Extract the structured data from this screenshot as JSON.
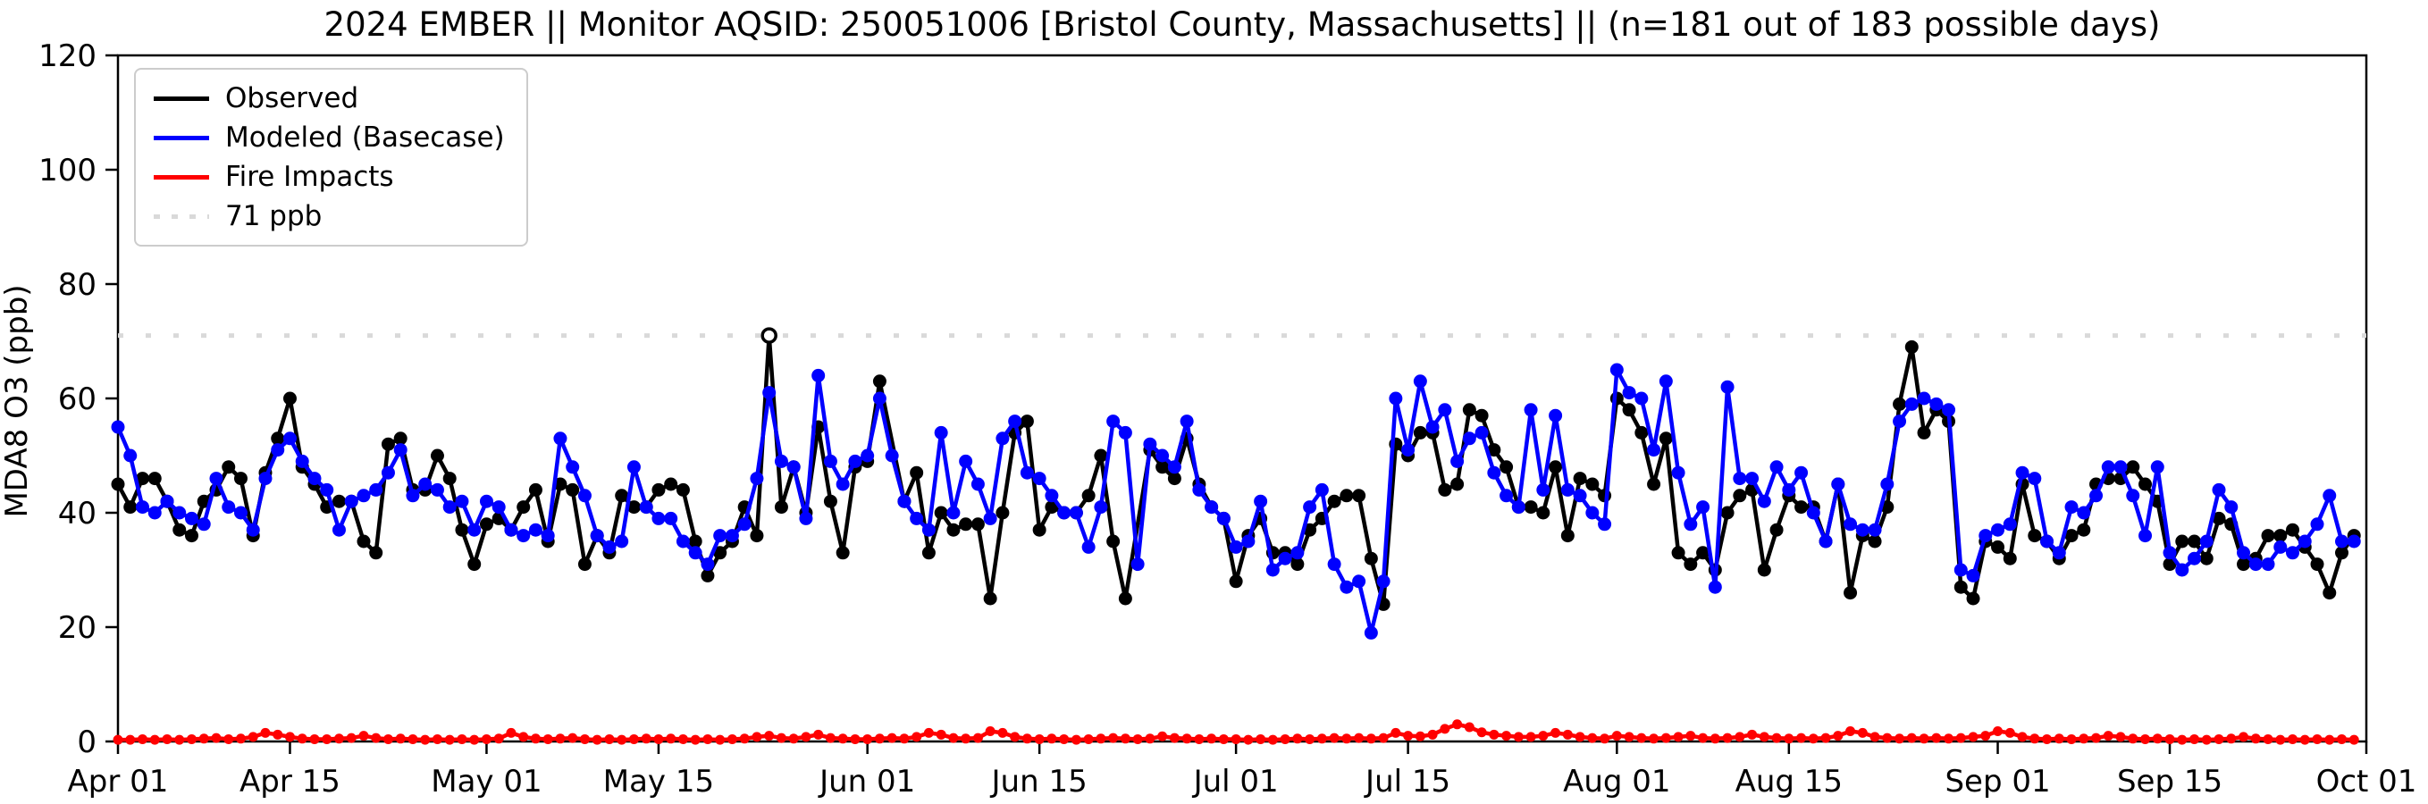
{
  "chart_data": {
    "type": "line",
    "title": "2024 EMBER || Monitor AQSID: 250051006 [Bristol County, Massachusetts] || (n=181 out of 183 possible days)",
    "ylabel": "MDA8 O3 (ppb)",
    "ylim": [
      0,
      120
    ],
    "yticks": [
      0,
      20,
      40,
      60,
      80,
      100,
      120
    ],
    "x_total_days": 183,
    "xticks": [
      {
        "day": 0,
        "label": "Apr 01"
      },
      {
        "day": 14,
        "label": "Apr 15"
      },
      {
        "day": 30,
        "label": "May 01"
      },
      {
        "day": 44,
        "label": "May 15"
      },
      {
        "day": 61,
        "label": "Jun 01"
      },
      {
        "day": 75,
        "label": "Jun 15"
      },
      {
        "day": 91,
        "label": "Jul 01"
      },
      {
        "day": 105,
        "label": "Jul 15"
      },
      {
        "day": 122,
        "label": "Aug 01"
      },
      {
        "day": 136,
        "label": "Aug 15"
      },
      {
        "day": 153,
        "label": "Sep 01"
      },
      {
        "day": 167,
        "label": "Sep 15"
      },
      {
        "day": 183,
        "label": "Oct 01"
      }
    ],
    "threshold": {
      "value": 71,
      "label": "71 ppb",
      "color": "#d9d9d9"
    },
    "background_color": "#ffffff",
    "legend_items": [
      {
        "label": "Observed",
        "color": "#000000",
        "style": "solid"
      },
      {
        "label": "Modeled (Basecase)",
        "color": "#0000ff",
        "style": "solid"
      },
      {
        "label": "Fire Impacts",
        "color": "#ff0000",
        "style": "solid"
      },
      {
        "label": "71 ppb",
        "color": "#d9d9d9",
        "style": "dotted"
      }
    ],
    "series": [
      {
        "name": "Observed",
        "color": "#000000",
        "marker": "circle",
        "hollow_marker_day": 53,
        "values": [
          45,
          41,
          46,
          46,
          42,
          37,
          36,
          42,
          44,
          48,
          46,
          36,
          47,
          53,
          60,
          48,
          45,
          41,
          42,
          42,
          35,
          33,
          52,
          53,
          44,
          44,
          50,
          46,
          37,
          31,
          38,
          39,
          37,
          41,
          44,
          35,
          45,
          44,
          31,
          36,
          33,
          43,
          41,
          41,
          44,
          45,
          44,
          35,
          29,
          33,
          35,
          41,
          36,
          71,
          41,
          48,
          40,
          55,
          42,
          33,
          48,
          49,
          63,
          null,
          42,
          47,
          33,
          40,
          37,
          38,
          38,
          25,
          40,
          54,
          56,
          37,
          41,
          40,
          40,
          43,
          50,
          35,
          25,
          null,
          51,
          48,
          46,
          53,
          45,
          41,
          39,
          28,
          36,
          39,
          33,
          33,
          31,
          37,
          39,
          42,
          43,
          43,
          32,
          24,
          52,
          50,
          54,
          54,
          44,
          45,
          58,
          57,
          51,
          48,
          41,
          41,
          40,
          48,
          36,
          46,
          45,
          43,
          60,
          58,
          54,
          45,
          53,
          33,
          31,
          33,
          30,
          40,
          43,
          44,
          30,
          37,
          43,
          41,
          41,
          35,
          45,
          26,
          36,
          35,
          41,
          59,
          69,
          54,
          58,
          56,
          27,
          25,
          35,
          34,
          32,
          45,
          36,
          35,
          32,
          36,
          37,
          45,
          46,
          46,
          48,
          45,
          42,
          31,
          35,
          35,
          32,
          39,
          38,
          31,
          32,
          36,
          36,
          37,
          34,
          31,
          26,
          33,
          36
        ]
      },
      {
        "name": "Modeled (Basecase)",
        "color": "#0000ff",
        "marker": "circle",
        "values": [
          55,
          50,
          41,
          40,
          42,
          40,
          39,
          38,
          46,
          41,
          40,
          37,
          46,
          51,
          53,
          49,
          46,
          44,
          37,
          42,
          43,
          44,
          47,
          51,
          43,
          45,
          44,
          41,
          42,
          37,
          42,
          41,
          37,
          36,
          37,
          36,
          53,
          48,
          43,
          36,
          34,
          35,
          48,
          41,
          39,
          39,
          35,
          33,
          31,
          36,
          36,
          38,
          46,
          61,
          49,
          48,
          39,
          64,
          49,
          45,
          49,
          50,
          60,
          50,
          42,
          39,
          37,
          54,
          40,
          49,
          45,
          39,
          53,
          56,
          47,
          46,
          43,
          40,
          40,
          34,
          41,
          56,
          54,
          31,
          52,
          50,
          48,
          56,
          44,
          41,
          39,
          34,
          35,
          42,
          30,
          32,
          33,
          41,
          44,
          31,
          27,
          28,
          19,
          28,
          60,
          51,
          63,
          55,
          58,
          49,
          53,
          54,
          47,
          43,
          41,
          58,
          44,
          57,
          44,
          43,
          40,
          38,
          65,
          61,
          60,
          51,
          63,
          47,
          38,
          41,
          27,
          62,
          46,
          46,
          42,
          48,
          44,
          47,
          40,
          35,
          45,
          38,
          37,
          37,
          45,
          56,
          59,
          60,
          59,
          58,
          30,
          29,
          36,
          37,
          38,
          47,
          46,
          35,
          33,
          41,
          40,
          43,
          48,
          48,
          43,
          36,
          48,
          33,
          30,
          32,
          35,
          44,
          41,
          33,
          31,
          31,
          34,
          33,
          35,
          38,
          43,
          35,
          35
        ]
      },
      {
        "name": "Fire Impacts",
        "color": "#ff0000",
        "marker": "circle",
        "values": [
          0.3,
          0.3,
          0.4,
          0.3,
          0.4,
          0.3,
          0.4,
          0.5,
          0.6,
          0.4,
          0.5,
          0.8,
          1.5,
          1.2,
          0.8,
          0.5,
          0.4,
          0.4,
          0.5,
          0.6,
          1.0,
          0.6,
          0.4,
          0.5,
          0.4,
          0.3,
          0.4,
          0.3,
          0.4,
          0.3,
          0.4,
          0.5,
          1.5,
          0.8,
          0.5,
          0.4,
          0.5,
          0.6,
          0.4,
          0.3,
          0.4,
          0.3,
          0.4,
          0.5,
          0.4,
          0.5,
          0.4,
          0.3,
          0.4,
          0.3,
          0.4,
          0.5,
          0.8,
          1.0,
          0.6,
          0.5,
          0.8,
          1.2,
          0.6,
          0.5,
          0.4,
          0.4,
          0.5,
          0.6,
          0.5,
          0.8,
          1.5,
          1.2,
          0.6,
          0.5,
          0.6,
          1.8,
          1.5,
          0.8,
          0.5,
          0.4,
          0.5,
          0.4,
          0.3,
          0.4,
          0.5,
          0.6,
          0.5,
          0.4,
          0.5,
          0.9,
          0.6,
          0.5,
          0.4,
          0.5,
          0.4,
          0.4,
          0.3,
          0.4,
          0.3,
          0.4,
          0.5,
          0.4,
          0.5,
          0.6,
          0.5,
          0.6,
          0.5,
          0.6,
          1.5,
          1.0,
          0.9,
          1.2,
          2.2,
          3.0,
          2.5,
          1.6,
          1.2,
          1.0,
          0.8,
          0.8,
          1.0,
          1.5,
          1.2,
          0.8,
          0.6,
          0.5,
          1.0,
          0.8,
          0.6,
          0.5,
          0.6,
          0.8,
          1.0,
          0.6,
          0.5,
          0.6,
          0.8,
          1.2,
          0.8,
          0.6,
          0.5,
          0.6,
          0.5,
          0.6,
          1.0,
          1.8,
          1.5,
          0.8,
          0.6,
          0.5,
          0.6,
          0.5,
          0.6,
          0.5,
          0.6,
          0.8,
          1.0,
          1.8,
          1.5,
          0.8,
          0.5,
          0.4,
          0.5,
          0.4,
          0.5,
          0.6,
          1.0,
          0.8,
          0.5,
          0.4,
          0.5,
          0.4,
          0.3,
          0.4,
          0.3,
          0.4,
          0.5,
          0.8,
          0.5,
          0.4,
          0.3,
          0.4,
          0.3,
          0.4,
          0.3,
          0.4,
          0.3
        ]
      }
    ]
  }
}
